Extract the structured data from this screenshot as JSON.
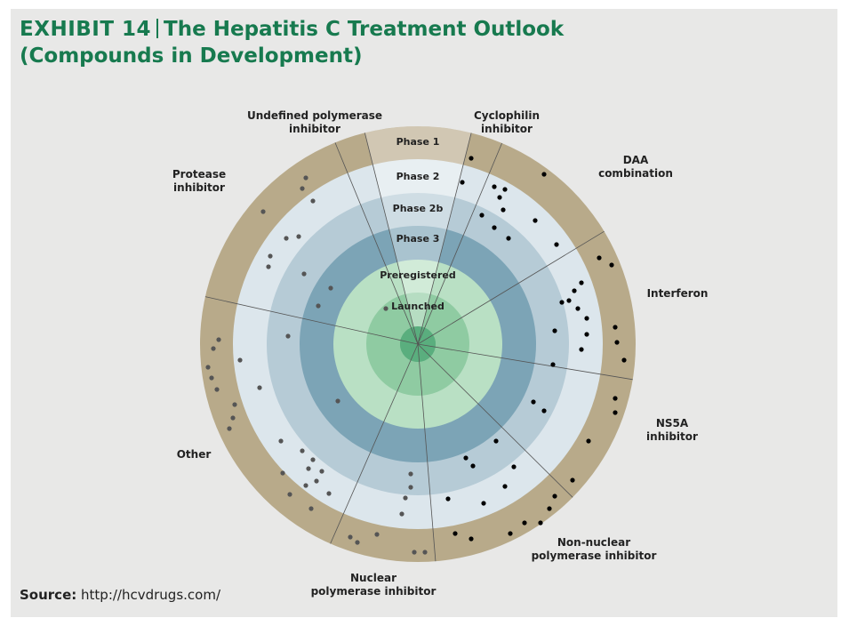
{
  "header": {
    "exhibit": "EXHIBIT 14",
    "title": "The Hepatitis C Treatment Outlook",
    "subtitle": "(Compounds in Development)"
  },
  "phases": [
    "Phase 1",
    "Phase 2",
    "Phase 2b",
    "Phase 3",
    "Preregistered",
    "Launched"
  ],
  "sectors": [
    {
      "lines": [
        "Undefined polymerase",
        "inhibitor"
      ]
    },
    {
      "lines": [
        "Cyclophilin",
        "inhibitor"
      ]
    },
    {
      "lines": [
        "DAA",
        "combination"
      ]
    },
    {
      "lines": [
        "Interferon"
      ]
    },
    {
      "lines": [
        "NS5A",
        "inhibitor"
      ]
    },
    {
      "lines": [
        "Non-nuclear",
        "polymerase inhibitor"
      ]
    },
    {
      "lines": [
        "Nuclear",
        "polymerase inhibitor"
      ]
    },
    {
      "lines": [
        "Other"
      ]
    },
    {
      "lines": [
        "Protease",
        "inhibitor"
      ]
    }
  ],
  "source": {
    "label": "Source:",
    "text": "http://hcvdrugs.com/"
  }
}
